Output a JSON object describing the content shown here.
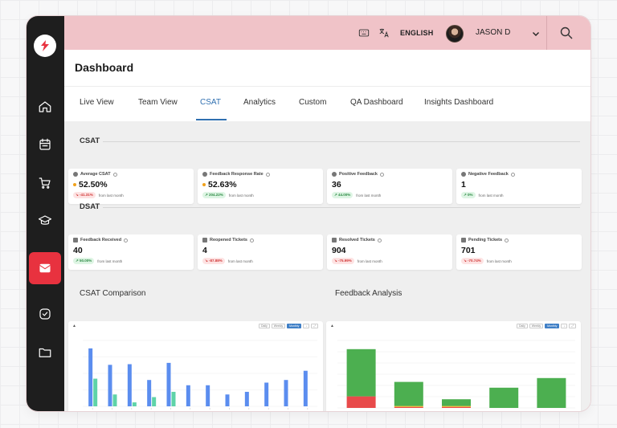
{
  "sidebar": {
    "logo": "brand-logo",
    "items": [
      {
        "icon": "home-icon",
        "active": false
      },
      {
        "icon": "calendar-icon",
        "active": false
      },
      {
        "icon": "cart-icon",
        "active": false
      },
      {
        "icon": "graduation-cap-icon",
        "active": false
      },
      {
        "icon": "mail-icon",
        "active": true
      },
      {
        "icon": "check-circle-icon",
        "active": false
      },
      {
        "icon": "folder-icon",
        "active": false
      }
    ]
  },
  "topbar": {
    "language": "ENGLISH",
    "user_name": "JASON D"
  },
  "header": {
    "title": "Dashboard"
  },
  "tabs": [
    {
      "label": "Live View"
    },
    {
      "label": "Team View"
    },
    {
      "label": "CSAT",
      "active": true
    },
    {
      "label": "Analytics"
    },
    {
      "label": "Custom"
    },
    {
      "label": "QA Dashboard"
    },
    {
      "label": "Insights Dashboard"
    }
  ],
  "csat": {
    "title": "CSAT",
    "cards": [
      {
        "label": "Average CSAT",
        "value": "52.50%",
        "dot": true,
        "change": "-41.31%",
        "trend": "down",
        "from": "from last month"
      },
      {
        "label": "Feedback Response Rate",
        "value": "52.63%",
        "dot": true,
        "change": "204.22%",
        "trend": "up",
        "from": "from last month"
      },
      {
        "label": "Positive Feedback",
        "value": "36",
        "dot": false,
        "change": "44.00%",
        "trend": "up",
        "from": "from last month"
      },
      {
        "label": "Negative Feedback",
        "value": "1",
        "dot": false,
        "change": "0%",
        "trend": "up",
        "from": "from last month"
      }
    ]
  },
  "dsat": {
    "title": "DSAT",
    "cards": [
      {
        "label": "Feedback Received",
        "value": "40",
        "change": "50.00%",
        "trend": "up",
        "from": "from last month"
      },
      {
        "label": "Reopened Tickets",
        "value": "4",
        "change": "-87.88%",
        "trend": "down",
        "from": "from last month"
      },
      {
        "label": "Resolved Tickets",
        "value": "904",
        "change": "-75.99%",
        "trend": "down",
        "from": "from last month"
      },
      {
        "label": "Pending Tickets",
        "value": "701",
        "change": "-70.74%",
        "trend": "down",
        "from": "from last month"
      }
    ]
  },
  "charts": {
    "csat_comparison_title": "CSAT Comparison",
    "feedback_analysis_title": "Feedback Analysis",
    "toolbar": [
      "Daily",
      "Weekly",
      "Monthly"
    ]
  },
  "chart_data": [
    {
      "type": "bar",
      "title": "CSAT Comparison",
      "colors": [
        "#5b8def",
        "#5ed3a8"
      ],
      "series": [
        {
          "values": [
            88,
            63,
            64,
            40,
            66,
            32,
            32,
            18,
            22,
            36,
            40,
            54
          ]
        },
        {
          "values": [
            42,
            18,
            6,
            14,
            22,
            0,
            0,
            0,
            0,
            0,
            0,
            0
          ]
        }
      ],
      "ylim": [
        0,
        100
      ]
    },
    {
      "type": "bar",
      "title": "Feedback Analysis",
      "stacked": true,
      "colors": [
        "#4caf50",
        "#e84a4a",
        "#f0b429"
      ],
      "series": [
        {
          "values": [
            49,
            25,
            7,
            21,
            31
          ]
        },
        {
          "values": [
            12,
            1,
            1,
            0,
            0
          ]
        },
        {
          "values": [
            0,
            1,
            1,
            0,
            0
          ]
        }
      ],
      "ylim": [
        0,
        70
      ]
    }
  ]
}
